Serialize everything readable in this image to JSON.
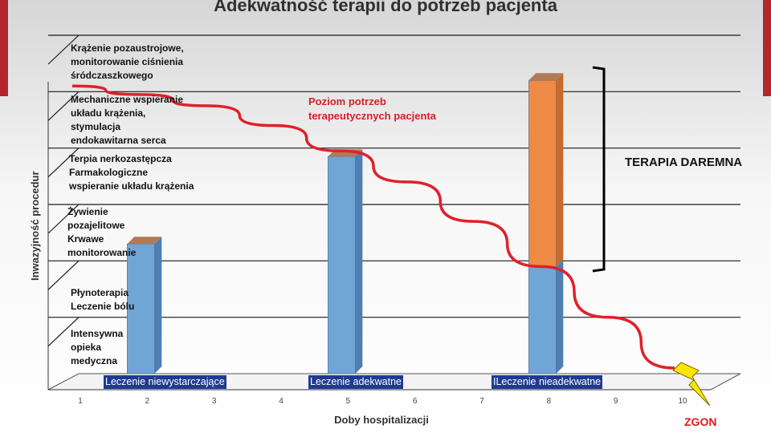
{
  "page": {
    "title": "Adekwatność terapii do potrzeb pacjenta",
    "futile_label": "TERAPIA DAREMNA",
    "curve_label": [
      "Poziom potrzeb",
      "terapeutycznych pacjenta"
    ],
    "death_label": "ZGON",
    "colors": {
      "bar_blue": "#6fa6d6",
      "bar_orange": "#ee8a45",
      "curve": "#e0202a",
      "category_box": "#1f3a93"
    }
  },
  "chart_data": {
    "type": "bar",
    "title": "Adekwatność terapii do potrzeb pacjenta",
    "xlabel": "Doby hospitalizacji",
    "ylabel": "Inwazyjność procedur",
    "x_ticks": [
      "1",
      "2",
      "3",
      "4",
      "5",
      "6",
      "7",
      "8",
      "9",
      "10"
    ],
    "y_bands": [
      [
        "Intensywna",
        "opieka",
        "medyczna"
      ],
      [
        "Płynoterapia",
        "Leczenie bólu"
      ],
      [
        "Żywienie",
        "pozajelitowe",
        "Krwawe",
        "monitorowanie"
      ],
      [
        "Terpia nerkozastępcza",
        "Farmakologiczne",
        "wspieranie układu krążenia"
      ],
      [
        "Mechaniczne wspieranie",
        "układu krążenia,",
        "stymulacja",
        "endokawitarna serca"
      ],
      [
        "Krążenie pozaustrojowe,",
        "monitorowanie ciśnienia",
        "śródczaszkowego"
      ]
    ],
    "ylim": [
      0,
      6
    ],
    "bars": [
      {
        "x": 2,
        "value": 2.3,
        "category": "Leczenie niewystarczające",
        "segments": [
          {
            "from": 0,
            "to": 2.3,
            "color": "#6fa6d6"
          }
        ]
      },
      {
        "x": 5,
        "value": 3.85,
        "category": "Leczenie adekwatne",
        "segments": [
          {
            "from": 0,
            "to": 3.85,
            "color": "#6fa6d6"
          }
        ]
      },
      {
        "x": 8,
        "value": 5.2,
        "category": "ILeczenie nieadekwatne",
        "segments": [
          {
            "from": 0,
            "to": 1.9,
            "color": "#6fa6d6"
          },
          {
            "from": 1.9,
            "to": 5.2,
            "color": "#ee8a45"
          }
        ]
      }
    ],
    "curve": {
      "name": "Poziom potrzeb terapeutycznych pacjenta",
      "points": [
        [
          1,
          5.1
        ],
        [
          2,
          4.95
        ],
        [
          3,
          4.75
        ],
        [
          4,
          4.4
        ],
        [
          5,
          3.95
        ],
        [
          6,
          3.4
        ],
        [
          7,
          2.7
        ],
        [
          8,
          1.9
        ],
        [
          9,
          1.0
        ],
        [
          10,
          0.1
        ]
      ]
    },
    "grid": true
  }
}
